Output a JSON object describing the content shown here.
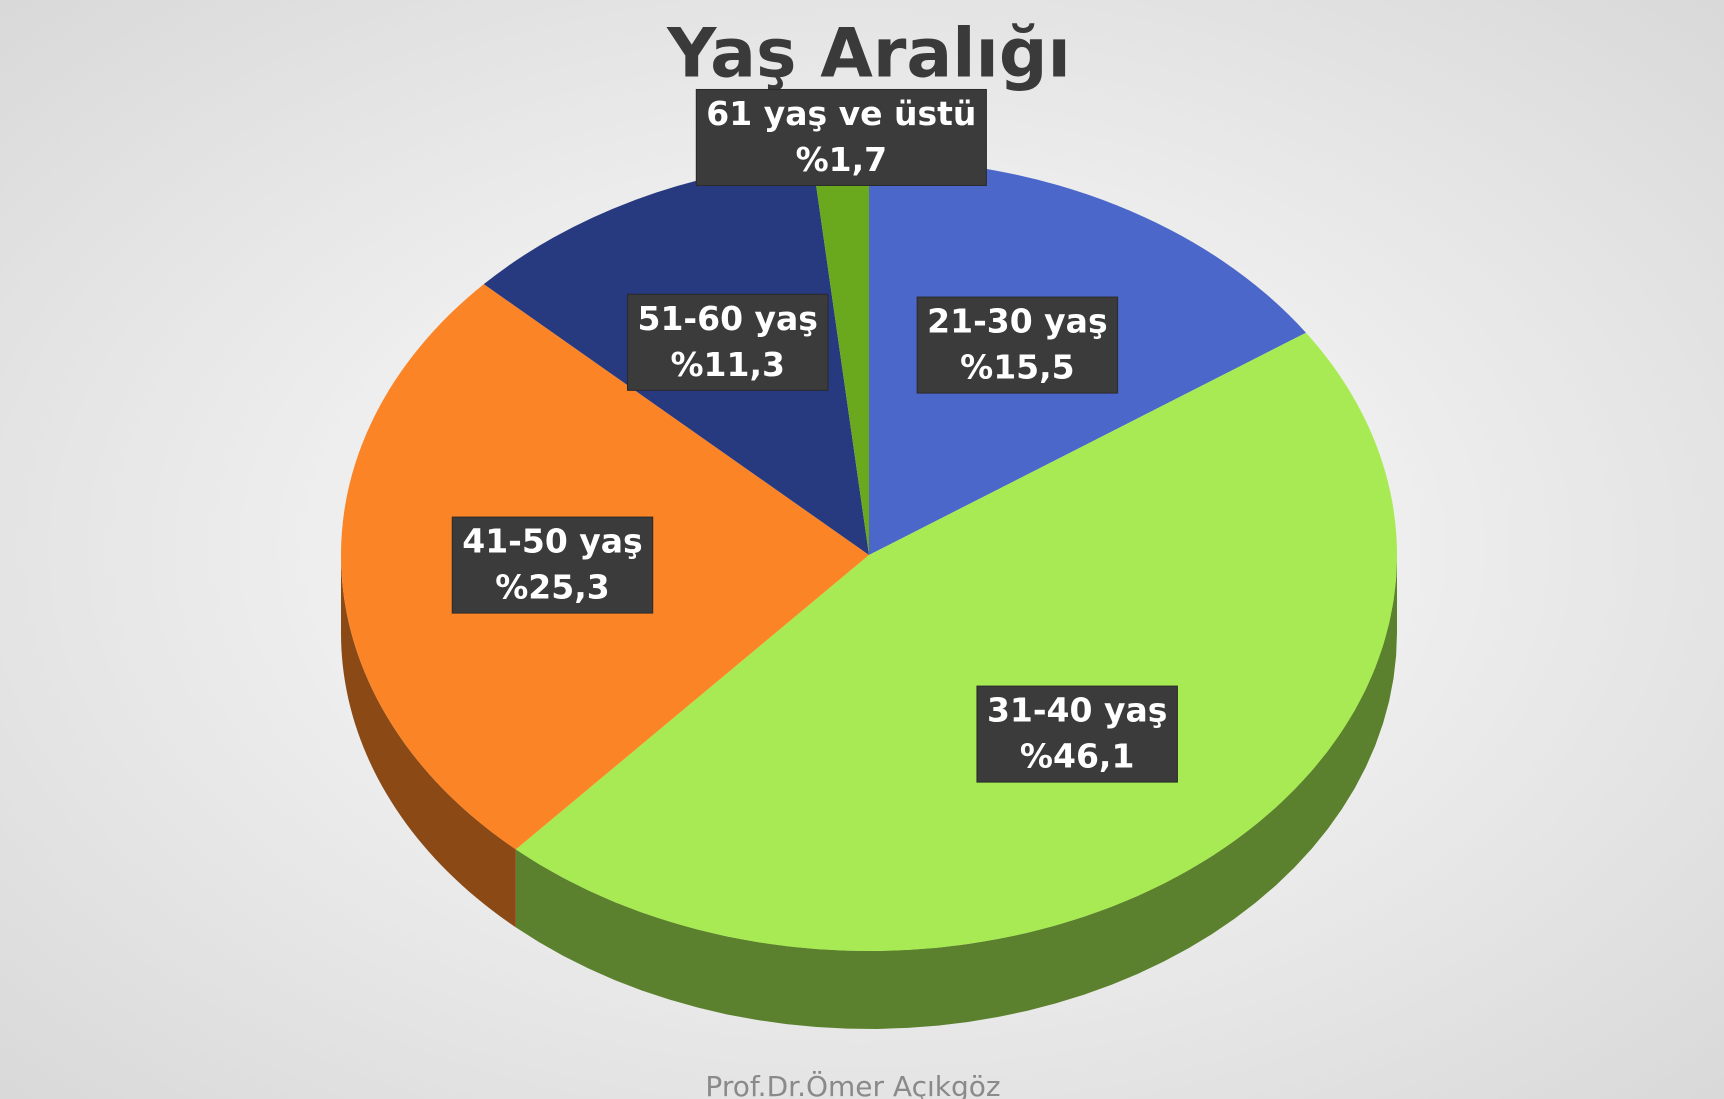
{
  "chart_data": {
    "type": "pie",
    "title": "Yaş Aralığı",
    "categories": [
      "21-30 yaş",
      "31-40 yaş",
      "41-50 yaş",
      "51-60 yaş",
      "61 yaş ve üstü"
    ],
    "values": [
      15.5,
      46.1,
      25.3,
      11.3,
      1.7
    ],
    "value_labels": [
      "%15,5",
      "%46,1",
      "%25,3",
      "%11,3",
      "%1,7"
    ],
    "colors": [
      "#4b67c9",
      "#a7ea53",
      "#fb8526",
      "#27397f",
      "#6aa91d"
    ],
    "footer": "Prof.Dr.Ömer Açıkgöz"
  }
}
